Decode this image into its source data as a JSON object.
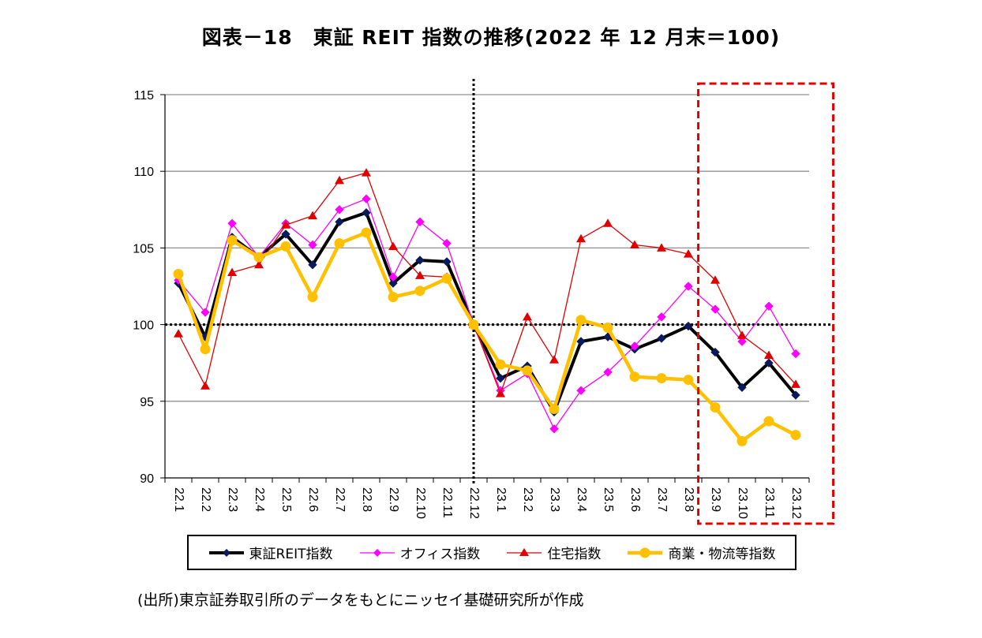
{
  "title": "図表－18　東証 REIT 指数の推移(2022 年 12 月末＝100)",
  "source": "(出所)東京証券取引所のデータをもとにニッセイ基礎研究所が作成",
  "chart_data": {
    "type": "line",
    "categories": [
      "22.1",
      "22.2",
      "22.3",
      "22.4",
      "22.5",
      "22.6",
      "22.7",
      "22.8",
      "22.9",
      "22.10",
      "22.11",
      "22.12",
      "23.1",
      "23.2",
      "23.3",
      "23.4",
      "23.5",
      "23.6",
      "23.7",
      "23.8",
      "23.9",
      "23.10",
      "23.11",
      "23.12"
    ],
    "ylim": [
      90,
      115
    ],
    "yticks": [
      90,
      95,
      100,
      105,
      110,
      115
    ],
    "grid": true,
    "reference_line": 100,
    "vertical_marker_category": "22.12",
    "highlight_categories": [
      "23.9",
      "23.12"
    ],
    "legend_position": "bottom",
    "series": [
      {
        "name": "東証REIT指数",
        "color": "#000000",
        "marker": "diamond",
        "marker_color": "#0a1a5c",
        "values": [
          102.7,
          99.2,
          105.7,
          104.4,
          105.9,
          103.9,
          106.7,
          107.3,
          102.7,
          104.2,
          104.1,
          100.0,
          96.5,
          97.3,
          94.3,
          98.9,
          99.2,
          98.4,
          99.1,
          99.9,
          98.2,
          95.9,
          97.5,
          95.4
        ]
      },
      {
        "name": "オフィス指数",
        "color": "#ff00ff",
        "marker": "diamond",
        "marker_color": "#ff00ff",
        "values": [
          102.9,
          100.8,
          106.6,
          104.4,
          106.6,
          105.2,
          107.5,
          108.2,
          103.1,
          106.7,
          105.3,
          100.0,
          95.7,
          96.8,
          93.2,
          95.7,
          96.9,
          98.6,
          100.5,
          102.5,
          101.0,
          98.9,
          101.2,
          98.1
        ]
      },
      {
        "name": "住宅指数",
        "color": "#e00000",
        "marker": "triangle",
        "marker_color": "#e00000",
        "values": [
          99.4,
          96.0,
          103.4,
          103.9,
          106.5,
          107.1,
          109.4,
          109.9,
          105.1,
          103.2,
          103.1,
          100.0,
          95.5,
          100.5,
          97.7,
          105.6,
          106.6,
          105.2,
          105.0,
          104.6,
          102.9,
          99.3,
          98.0,
          96.1
        ]
      },
      {
        "name": "商業・物流等指数",
        "color": "#ffc000",
        "marker": "circle",
        "marker_color": "#ffc000",
        "values": [
          103.3,
          98.4,
          105.5,
          104.4,
          105.1,
          101.8,
          105.3,
          106.0,
          101.8,
          102.2,
          103.0,
          100.0,
          97.4,
          97.0,
          94.5,
          100.3,
          99.8,
          96.6,
          96.5,
          96.4,
          94.6,
          92.4,
          93.7,
          92.8
        ]
      }
    ]
  }
}
